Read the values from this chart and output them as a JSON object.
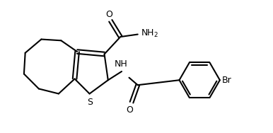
{
  "background_color": "#ffffff",
  "line_color": "#000000",
  "line_width": 1.5,
  "fig_width": 3.86,
  "fig_height": 1.88,
  "dpi": 100,
  "xlim": [
    0,
    11
  ],
  "ylim": [
    0,
    5.2
  ]
}
